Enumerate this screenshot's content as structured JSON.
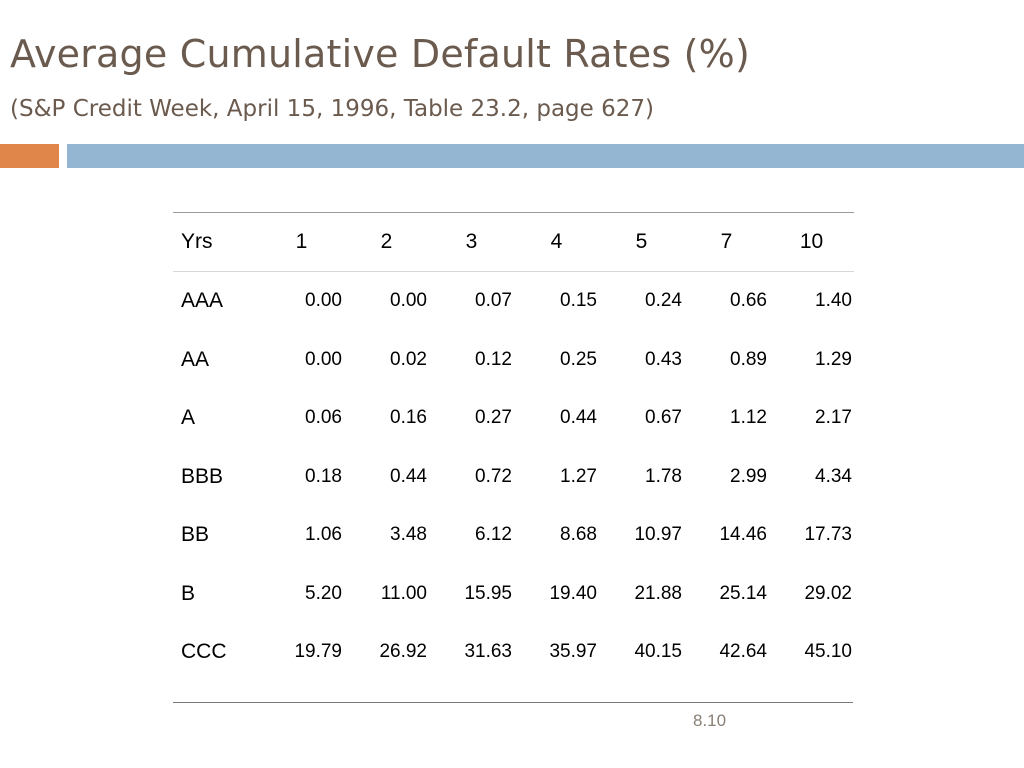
{
  "slide": {
    "title": "Average Cumulative Default Rates (%)",
    "subtitle": "(S&P Credit Week, April 15, 1996, Table 23.2, page 627)",
    "page_number": "8.10"
  },
  "colors": {
    "title_text": "#6b5a4e",
    "accent_orange": "#e0864a",
    "accent_blue": "#94b6d2"
  },
  "table": {
    "headers": [
      "Yrs",
      "1",
      "2",
      "3",
      "4",
      "5",
      "7",
      "10"
    ],
    "rows": [
      [
        "AAA",
        "0.00",
        "0.00",
        "0.07",
        "0.15",
        "0.24",
        "0.66",
        "1.40"
      ],
      [
        "AA",
        "0.00",
        "0.02",
        "0.12",
        "0.25",
        "0.43",
        "0.89",
        "1.29"
      ],
      [
        "A",
        "0.06",
        "0.16",
        "0.27",
        "0.44",
        "0.67",
        "1.12",
        "2.17"
      ],
      [
        "BBB",
        "0.18",
        "0.44",
        "0.72",
        "1.27",
        "1.78",
        "2.99",
        "4.34"
      ],
      [
        "BB",
        "1.06",
        "3.48",
        "6.12",
        "8.68",
        "10.97",
        "14.46",
        "17.73"
      ],
      [
        "B",
        "5.20",
        "11.00",
        "15.95",
        "19.40",
        "21.88",
        "25.14",
        "29.02"
      ],
      [
        "CCC",
        "19.79",
        "26.92",
        "31.63",
        "35.97",
        "40.15",
        "42.64",
        "45.10"
      ]
    ]
  }
}
